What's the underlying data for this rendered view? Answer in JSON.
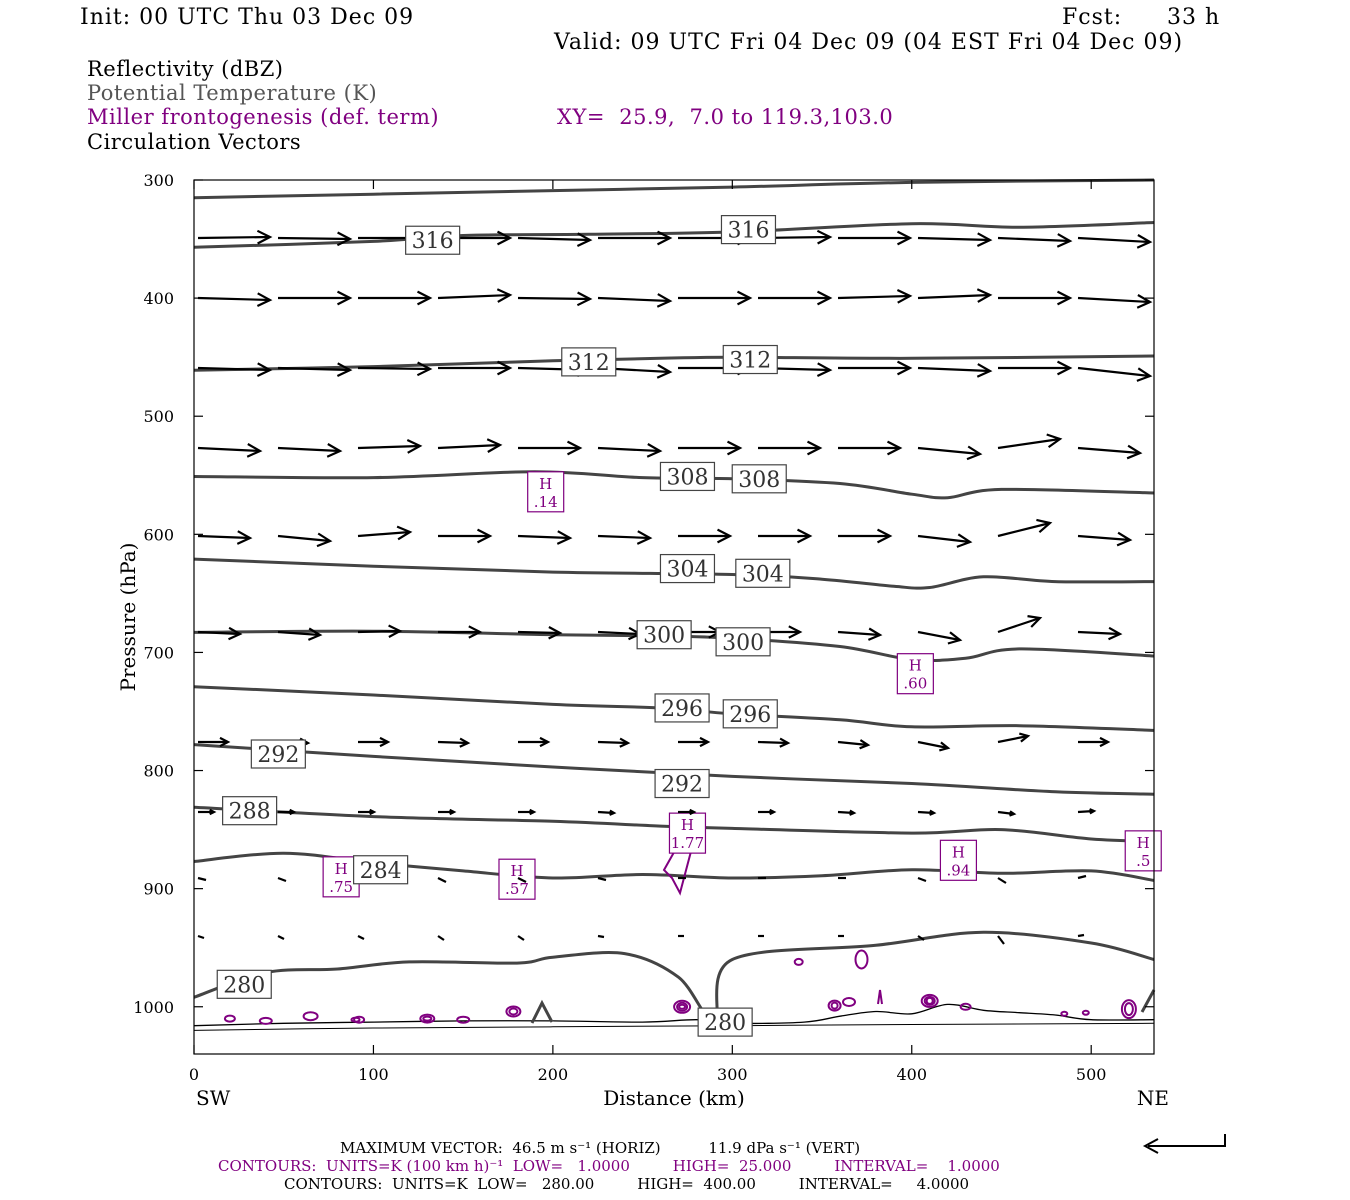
{
  "header": {
    "init": "Init: 00 UTC Thu 03 Dec 09",
    "fcst_label": "Fcst:",
    "fcst_value": "33 h",
    "valid": "Valid: 09 UTC Fri 04 Dec 09 (04 EST Fri 04 Dec 09)"
  },
  "legend": {
    "reflectivity": "Reflectivity (dBZ)",
    "theta": "Potential Temperature (K)",
    "frontogenesis": "Miller frontogenesis (def. term)",
    "xy": "XY=  25.9,  7.0 to 119.3,103.0",
    "vectors": "Circulation Vectors"
  },
  "footer": {
    "line1": "MAXIMUM VECTOR:  46.5 m s⁻¹ (HORIZ)          11.9 dPa s⁻¹ (VERT)",
    "line2": "CONTOURS:  UNITS=K (100 km h)⁻¹  LOW=   1.0000         HIGH=  25.000         INTERVAL=    1.0000",
    "line3": "CONTOURS:  UNITS=K  LOW=   280.00         HIGH=  400.00         INTERVAL=     4.0000"
  },
  "colors": {
    "theta": "#444444",
    "frontogenesis": "#800080",
    "vectors": "#000000",
    "terrain": "#000000"
  },
  "chart_data": {
    "type": "line",
    "xlabel": "Distance (km)",
    "ylabel": "Pressure (hPa)",
    "xlim": [
      0,
      535
    ],
    "ylim": [
      1040,
      300
    ],
    "x_ticks": [
      0,
      100,
      200,
      300,
      400,
      500
    ],
    "y_ticks": [
      300,
      400,
      500,
      600,
      700,
      800,
      900,
      1000
    ],
    "x_end_labels": {
      "left": "SW",
      "right": "NE"
    },
    "grid": false,
    "theta_contours": [
      {
        "label": "316",
        "points": [
          [
            0,
            315
          ],
          [
            100,
            312
          ],
          [
            200,
            309
          ],
          [
            300,
            306
          ],
          [
            400,
            302
          ],
          [
            535,
            300
          ]
        ]
      },
      {
        "label": "316",
        "points": [
          [
            0,
            357
          ],
          [
            100,
            352
          ],
          [
            150,
            347
          ],
          [
            220,
            346
          ],
          [
            300,
            344
          ],
          [
            400,
            337
          ],
          [
            460,
            340
          ],
          [
            535,
            336
          ]
        ]
      },
      {
        "label": "312",
        "points": [
          [
            0,
            461
          ],
          [
            100,
            458
          ],
          [
            200,
            453
          ],
          [
            260,
            451
          ],
          [
            300,
            450
          ],
          [
            400,
            451
          ],
          [
            535,
            449
          ]
        ]
      },
      {
        "label": "308",
        "points": [
          [
            0,
            551
          ],
          [
            100,
            552
          ],
          [
            190,
            547
          ],
          [
            250,
            552
          ],
          [
            300,
            553
          ],
          [
            360,
            557
          ],
          [
            400,
            566
          ],
          [
            420,
            569
          ],
          [
            450,
            562
          ],
          [
            535,
            565
          ]
        ]
      },
      {
        "label": "304",
        "points": [
          [
            0,
            621
          ],
          [
            100,
            627
          ],
          [
            200,
            632
          ],
          [
            300,
            634
          ],
          [
            350,
            638
          ],
          [
            390,
            644
          ],
          [
            410,
            645
          ],
          [
            440,
            636
          ],
          [
            480,
            640
          ],
          [
            535,
            640
          ]
        ]
      },
      {
        "label": "300",
        "points": [
          [
            0,
            683
          ],
          [
            100,
            682
          ],
          [
            200,
            685
          ],
          [
            260,
            686
          ],
          [
            300,
            688
          ],
          [
            360,
            695
          ],
          [
            400,
            706
          ],
          [
            430,
            705
          ],
          [
            460,
            697
          ],
          [
            535,
            703
          ]
        ]
      },
      {
        "label": "296",
        "points": [
          [
            0,
            729
          ],
          [
            100,
            736
          ],
          [
            200,
            744
          ],
          [
            260,
            747
          ],
          [
            300,
            752
          ],
          [
            360,
            757
          ],
          [
            400,
            763
          ],
          [
            460,
            762
          ],
          [
            535,
            766
          ]
        ]
      },
      {
        "label": "292",
        "points": [
          [
            0,
            778
          ],
          [
            100,
            788
          ],
          [
            200,
            797
          ],
          [
            300,
            805
          ],
          [
            400,
            811
          ],
          [
            480,
            818
          ],
          [
            535,
            820
          ]
        ]
      },
      {
        "label": "288",
        "points": [
          [
            0,
            831
          ],
          [
            100,
            839
          ],
          [
            200,
            843
          ],
          [
            260,
            847
          ],
          [
            300,
            849
          ],
          [
            400,
            853
          ],
          [
            450,
            850
          ],
          [
            500,
            858
          ],
          [
            535,
            860
          ]
        ]
      },
      {
        "label": "284",
        "points": [
          [
            0,
            877
          ],
          [
            50,
            870
          ],
          [
            100,
            878
          ],
          [
            150,
            885
          ],
          [
            200,
            891
          ],
          [
            250,
            888
          ],
          [
            300,
            891
          ],
          [
            350,
            889
          ],
          [
            400,
            884
          ],
          [
            450,
            887
          ],
          [
            500,
            885
          ],
          [
            535,
            893
          ]
        ]
      },
      {
        "label": "280",
        "points": [
          [
            0,
            992
          ],
          [
            40,
            971
          ],
          [
            80,
            968
          ],
          [
            120,
            962
          ],
          [
            180,
            963
          ],
          [
            200,
            958
          ],
          [
            240,
            955
          ],
          [
            270,
            975
          ],
          [
            290,
            1012
          ],
          [
            300,
            960
          ],
          [
            380,
            948
          ],
          [
            440,
            937
          ],
          [
            500,
            946
          ],
          [
            535,
            960
          ]
        ]
      }
    ],
    "theta_labels": [
      {
        "text": "316",
        "x": 133,
        "p": 351
      },
      {
        "text": "316",
        "x": 309,
        "p": 342
      },
      {
        "text": "312",
        "x": 220,
        "p": 454
      },
      {
        "text": "312",
        "x": 310,
        "p": 452
      },
      {
        "text": "308",
        "x": 275,
        "p": 551
      },
      {
        "text": "308",
        "x": 315,
        "p": 553
      },
      {
        "text": "304",
        "x": 275,
        "p": 629
      },
      {
        "text": "304",
        "x": 317,
        "p": 633
      },
      {
        "text": "300",
        "x": 262,
        "p": 685
      },
      {
        "text": "300",
        "x": 306,
        "p": 691
      },
      {
        "text": "296",
        "x": 272,
        "p": 747
      },
      {
        "text": "296",
        "x": 310,
        "p": 752
      },
      {
        "text": "292",
        "x": 47,
        "p": 786
      },
      {
        "text": "292",
        "x": 272,
        "p": 811
      },
      {
        "text": "288",
        "x": 31,
        "p": 834
      },
      {
        "text": "284",
        "x": 104,
        "p": 884
      },
      {
        "text": "280",
        "x": 28,
        "p": 981
      },
      {
        "text": "280",
        "x": 296,
        "p": 1013
      }
    ],
    "frontogenesis_maxima": [
      {
        "label": "H",
        "value": ".14",
        "x": 196,
        "p": 564
      },
      {
        "label": "H",
        "value": ".60",
        "x": 402,
        "p": 718
      },
      {
        "label": "H",
        "value": "1.77",
        "x": 275,
        "p": 853
      },
      {
        "label": "H",
        "value": ".75",
        "x": 82,
        "p": 890
      },
      {
        "label": "H",
        "value": ".57",
        "x": 180,
        "p": 892
      },
      {
        "label": "H",
        "value": ".94",
        "x": 426,
        "p": 876
      },
      {
        "label": "H",
        "value": ".5",
        "x": 529,
        "p": 868
      }
    ],
    "vector_scale": {
      "max_horizontal": "46.5 m s-1",
      "max_vertical": "11.9 dPa s-1"
    },
    "terrain_surface": [
      [
        0,
        1016
      ],
      [
        50,
        1014
      ],
      [
        100,
        1013
      ],
      [
        150,
        1012
      ],
      [
        200,
        1012
      ],
      [
        250,
        1013
      ],
      [
        280,
        1011
      ],
      [
        300,
        1014
      ],
      [
        340,
        1013
      ],
      [
        360,
        1008
      ],
      [
        380,
        1004
      ],
      [
        400,
        1006
      ],
      [
        420,
        998
      ],
      [
        440,
        1003
      ],
      [
        460,
        1005
      ],
      [
        480,
        1007
      ],
      [
        500,
        1011
      ],
      [
        535,
        1011
      ]
    ]
  }
}
